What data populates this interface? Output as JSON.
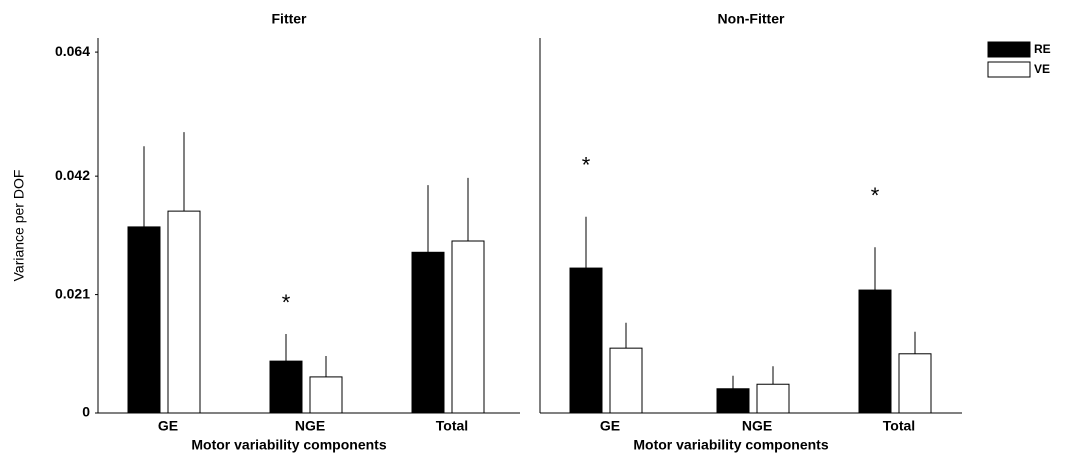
{
  "chart_data": [
    {
      "type": "bar",
      "title": "Fitter",
      "ylabel": "Variance per DOF",
      "xlabel": "Motor variability components",
      "categories": [
        "GE",
        "NGE",
        "Total"
      ],
      "series": [
        {
          "name": "RE",
          "color": "#000000",
          "values": [
            0.033,
            0.0092,
            0.0285
          ],
          "errors": [
            0.0143,
            0.0048,
            0.0119
          ]
        },
        {
          "name": "VE",
          "color": "#ffffff",
          "values": [
            0.0358,
            0.0064,
            0.0305
          ],
          "errors": [
            0.014,
            0.0037,
            0.0112
          ]
        }
      ],
      "markers": [
        null,
        "*",
        null
      ],
      "ylim": [
        0,
        0.0665
      ],
      "yticks": [
        0,
        0.021,
        0.042,
        0.064
      ]
    },
    {
      "type": "bar",
      "title": "Non-Fitter",
      "xlabel": "Motor variability components",
      "categories": [
        "GE",
        "NGE",
        "Total"
      ],
      "series": [
        {
          "color": "#000000",
          "values": [
            0.0257,
            0.0043,
            0.0218
          ],
          "errors": [
            0.0091,
            0.0023,
            0.0076
          ]
        },
        {
          "color": "#ffffff",
          "values": [
            0.0115,
            0.0051,
            0.0105
          ],
          "errors": [
            0.0045,
            0.0032,
            0.0039
          ]
        }
      ],
      "markers": [
        "*",
        null,
        "*"
      ],
      "ylim": [
        0,
        0.0665
      ]
    }
  ]
}
